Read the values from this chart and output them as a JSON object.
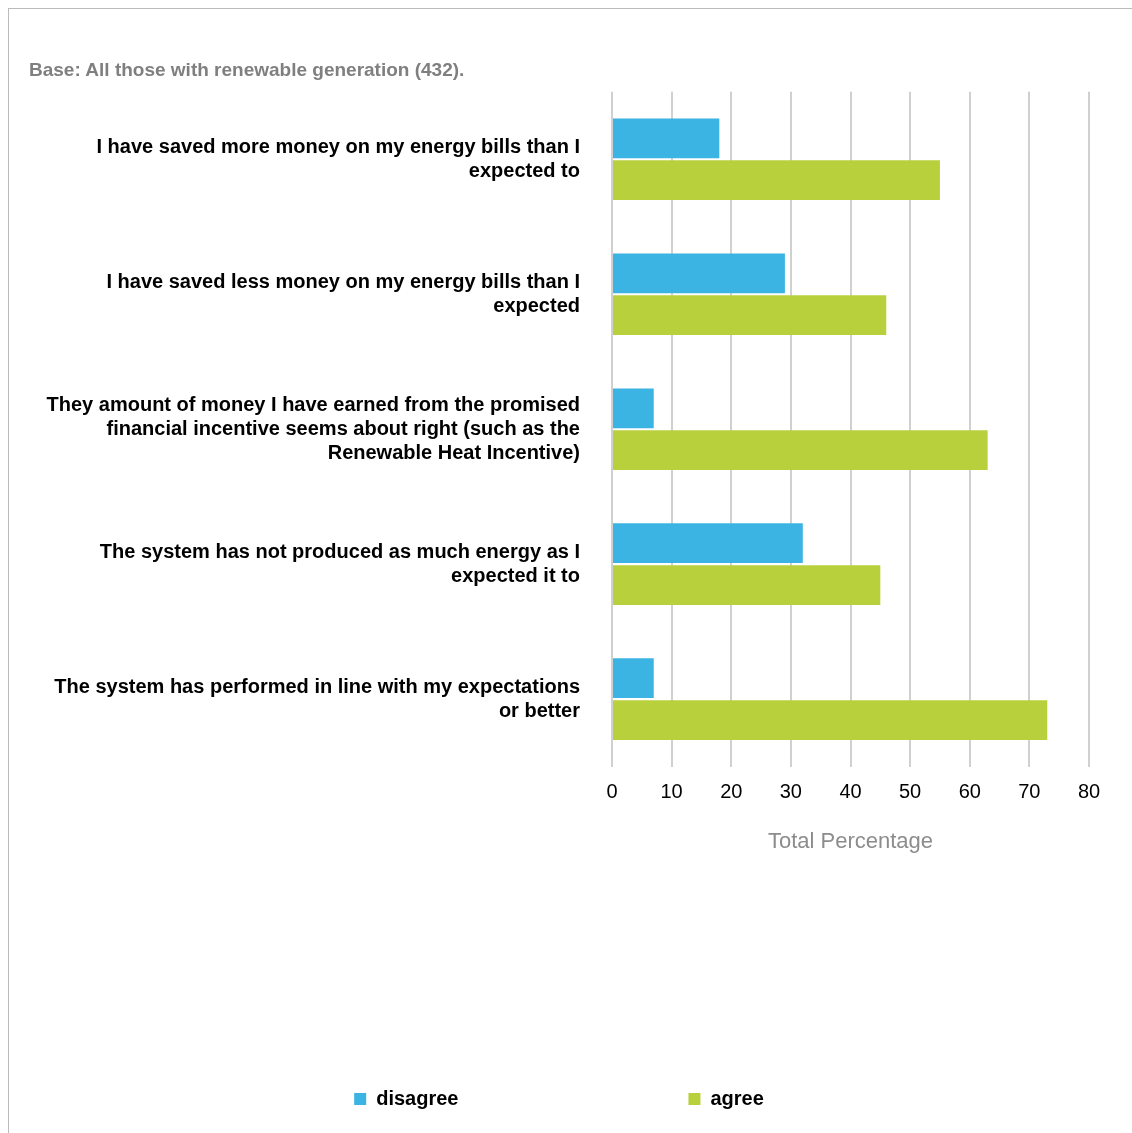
{
  "chart_data": {
    "type": "bar",
    "orientation": "horizontal",
    "title": "Base: All those with renewable generation (432).",
    "xlabel": "Total Percentage",
    "categories": [
      "I have saved more money on my energy bills than I expected to",
      "I have saved less money on my energy bills than I expected",
      "They amount of money I have earned from the promised financial incentive seems about right (such as the Renewable Heat Incentive)",
      "The system has not produced as much energy as I expected it to",
      "The system has performed in line with my expectations or better"
    ],
    "series": [
      {
        "name": "disagree",
        "color": "#3bb4e4",
        "values": [
          18,
          29,
          7,
          32,
          7
        ]
      },
      {
        "name": "agree",
        "color": "#b8d03c",
        "values": [
          55,
          46,
          63,
          45,
          73
        ]
      }
    ],
    "xlim": [
      0,
      80
    ],
    "xticks": [
      0,
      10,
      20,
      30,
      40,
      50,
      60,
      70,
      80
    ],
    "grid": "x",
    "legend": "bottom"
  }
}
